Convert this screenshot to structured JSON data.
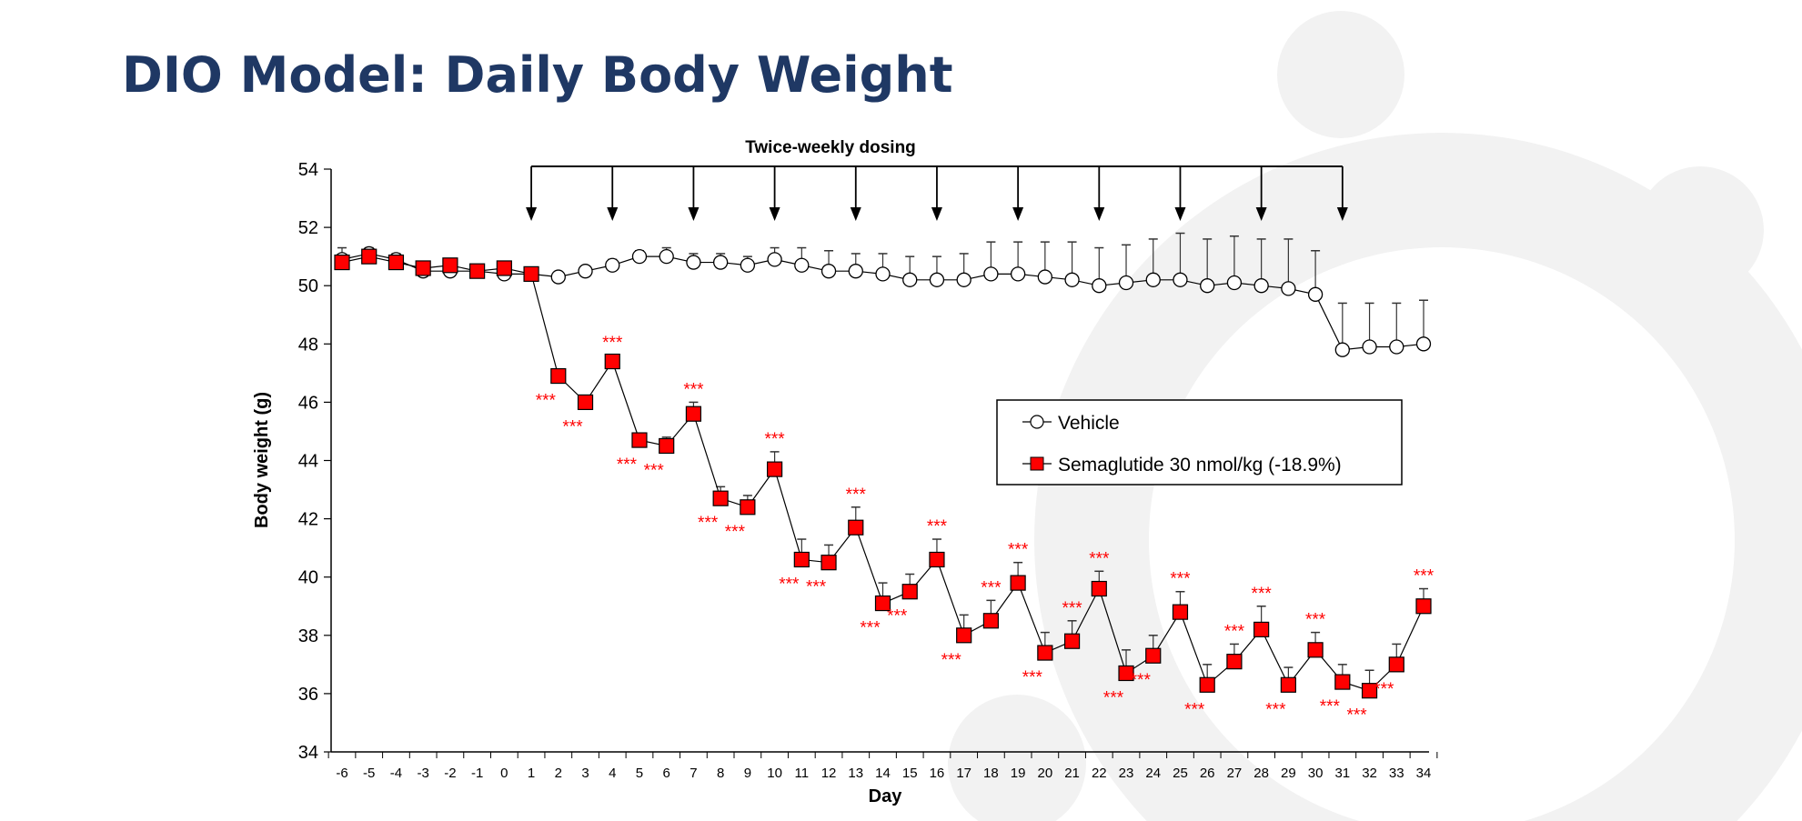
{
  "slide": {
    "title": "DIO Model: Daily Body Weight",
    "title_color": "#1f3864",
    "decoration_color": "#f2f2f2"
  },
  "chart_data": {
    "type": "line",
    "annotation": "Twice-weekly dosing",
    "dosing_days": [
      1,
      4,
      7,
      10,
      13,
      16,
      19,
      22,
      25,
      28,
      31
    ],
    "xlabel": "Day",
    "ylabel": "Body weight (g)",
    "ylim": [
      34,
      54
    ],
    "yticks": [
      34,
      36,
      38,
      40,
      42,
      44,
      46,
      48,
      50,
      52,
      54
    ],
    "x": [
      -6,
      -5,
      -4,
      -3,
      -2,
      -1,
      0,
      1,
      2,
      3,
      4,
      5,
      6,
      7,
      8,
      9,
      10,
      11,
      12,
      13,
      14,
      15,
      16,
      17,
      18,
      19,
      20,
      21,
      22,
      23,
      24,
      25,
      26,
      27,
      28,
      29,
      30,
      31,
      32,
      33,
      34
    ],
    "grid": false,
    "legend_placement": "center-right",
    "significance_marker": "***",
    "series": [
      {
        "name": "Vehicle",
        "marker": "open-circle",
        "color": "#000000",
        "values": [
          50.9,
          51.1,
          50.9,
          50.5,
          50.5,
          50.5,
          50.4,
          50.4,
          50.3,
          50.5,
          50.7,
          51.0,
          51.0,
          50.8,
          50.8,
          50.7,
          50.9,
          50.7,
          50.5,
          50.5,
          50.4,
          50.2,
          50.2,
          50.2,
          50.4,
          50.4,
          50.3,
          50.2,
          50.0,
          50.1,
          50.2,
          50.2,
          50.0,
          50.1,
          50.0,
          49.9,
          49.7,
          47.8,
          47.9,
          47.9,
          48.0
        ],
        "error": [
          0.4,
          0.2,
          0.2,
          0.1,
          0.1,
          0.1,
          0.1,
          0.1,
          0.1,
          0.1,
          0.2,
          0.2,
          0.3,
          0.3,
          0.3,
          0.3,
          0.4,
          0.6,
          0.7,
          0.6,
          0.7,
          0.8,
          0.8,
          0.9,
          1.1,
          1.1,
          1.2,
          1.3,
          1.3,
          1.3,
          1.4,
          1.6,
          1.6,
          1.6,
          1.6,
          1.7,
          1.5,
          1.6,
          1.5,
          1.5,
          1.5
        ]
      },
      {
        "name": "Semaglutide 30 nmol/kg (-18.9%)",
        "marker": "filled-square",
        "color": "#ff0000",
        "values": [
          50.8,
          51.0,
          50.8,
          50.6,
          50.7,
          50.5,
          50.6,
          50.4,
          46.9,
          46.0,
          47.4,
          44.7,
          44.5,
          45.6,
          42.7,
          42.4,
          43.7,
          40.6,
          40.5,
          41.7,
          39.1,
          39.5,
          40.6,
          38.0,
          38.5,
          39.8,
          37.4,
          37.8,
          39.6,
          36.7,
          37.3,
          38.8,
          36.3,
          37.1,
          38.2,
          36.3,
          37.5,
          36.4,
          36.1,
          37.0,
          39.0
        ],
        "error": [
          0.2,
          0.2,
          0.2,
          0.1,
          0.1,
          0.1,
          0.1,
          0.1,
          0.2,
          0.2,
          0.2,
          0.2,
          0.3,
          0.4,
          0.4,
          0.4,
          0.6,
          0.7,
          0.6,
          0.7,
          0.7,
          0.6,
          0.7,
          0.7,
          0.7,
          0.7,
          0.7,
          0.7,
          0.6,
          0.8,
          0.7,
          0.7,
          0.7,
          0.6,
          0.8,
          0.6,
          0.6,
          0.6,
          0.7,
          0.7,
          0.6
        ],
        "significant_days_above": [
          4,
          7,
          10,
          13,
          16,
          18,
          19,
          21,
          22,
          25,
          27,
          28,
          30,
          34
        ],
        "significant_days_below": [
          2,
          3,
          5,
          6,
          8,
          9,
          11,
          12,
          14,
          15,
          17,
          20,
          23,
          24,
          26,
          29,
          31,
          32,
          33
        ]
      }
    ]
  }
}
